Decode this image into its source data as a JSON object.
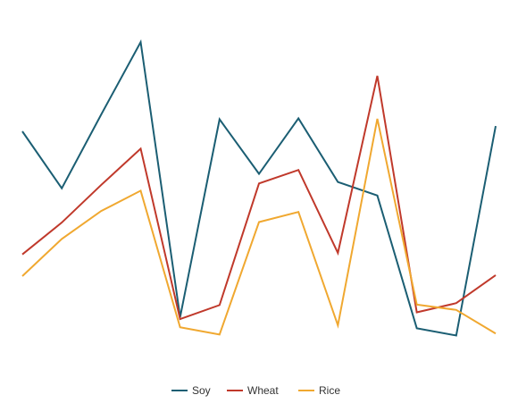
{
  "chart_data": {
    "type": "line",
    "title": "",
    "xlabel": "",
    "ylabel": "",
    "x": [
      1,
      2,
      3,
      4,
      5,
      6,
      7,
      8,
      9,
      10,
      11,
      12,
      13
    ],
    "ylim": [
      0,
      70
    ],
    "grid": false,
    "legend_position": "bottom-center",
    "series": [
      {
        "name": "Soy",
        "color": "#1b5e73",
        "values": [
          45,
          33.2,
          48.5,
          63.5,
          6.5,
          47.5,
          36.2,
          47.7,
          34.5,
          31.7,
          4.2,
          2.7,
          46.1
        ]
      },
      {
        "name": "Wheat",
        "color": "#c0392b",
        "values": [
          19.5,
          26.1,
          33.9,
          41.4,
          6.1,
          9.0,
          34.2,
          37.0,
          19.8,
          56.5,
          7.5,
          9.4,
          15.2
        ]
      },
      {
        "name": "Rice",
        "color": "#f0a830",
        "values": [
          15.0,
          22.7,
          28.5,
          32.7,
          4.4,
          2.9,
          26.2,
          28.3,
          4.8,
          47.6,
          9.1,
          8.0,
          3.1
        ]
      }
    ]
  }
}
